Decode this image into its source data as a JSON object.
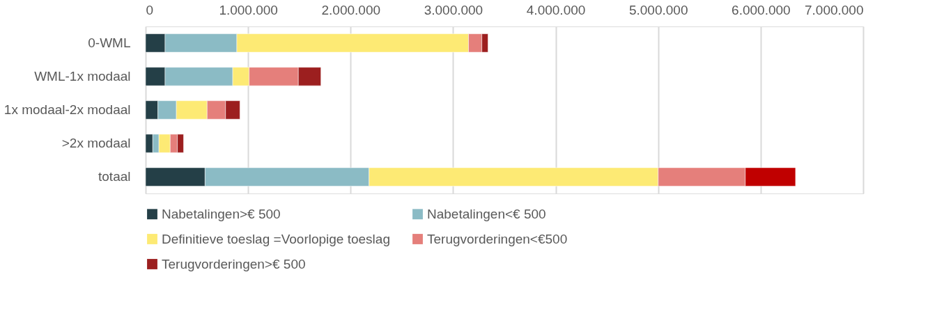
{
  "chart_data": {
    "type": "bar",
    "orientation": "horizontal",
    "stacked": true,
    "categories": [
      "0-WML",
      "WML-1x modaal",
      "1x modaal-2x modaal",
      ">2x modaal",
      "totaal"
    ],
    "series": [
      {
        "name": "Nabetalingen>€ 500",
        "color": "#243f47",
        "values": [
          190000,
          190000,
          120000,
          70000,
          580000
        ]
      },
      {
        "name": "Nabetalingen<€ 500",
        "color": "#8bbbc5",
        "values": [
          700000,
          660000,
          180000,
          60000,
          1600000
        ]
      },
      {
        "name": "Definitieve toeslag =Voorlopige toeslag",
        "color": "#fdea74",
        "values": [
          2260000,
          160000,
          300000,
          110000,
          2820000
        ]
      },
      {
        "name": "Terugvorderingen<€500",
        "color": "#e57f7b",
        "values": [
          130000,
          480000,
          180000,
          70000,
          850000
        ]
      },
      {
        "name": "Terugvorderingen>€ 500",
        "color": "#9c1f1f",
        "colors": [
          "#9c1f1f",
          "#9c1f1f",
          "#9c1f1f",
          "#9c1f1f",
          "#c00000"
        ],
        "values": [
          60000,
          220000,
          140000,
          60000,
          490000
        ]
      }
    ],
    "xlim": [
      0,
      7000000
    ],
    "xticks": [
      0,
      {
        "value": 1000000,
        "label": "1.000.000"
      },
      {
        "value": 2000000,
        "label": "2.000.000"
      },
      {
        "value": 3000000,
        "label": "3.000.000"
      },
      {
        "value": 4000000,
        "label": "4.000.000"
      },
      {
        "value": 5000000,
        "label": "5.000.000"
      },
      {
        "value": 6000000,
        "label": "6.000.000"
      },
      {
        "value": 7000000,
        "label": "7.000.000"
      }
    ],
    "grid": "x",
    "legend": "bottom"
  }
}
